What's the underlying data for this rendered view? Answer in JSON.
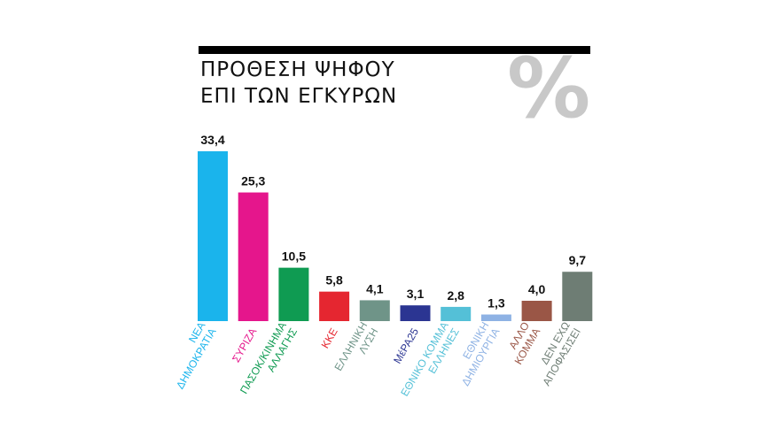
{
  "header": {
    "title_line1": "ΠΡΟΘΕΣΗ ΨΗΦΟΥ",
    "title_line2": "ΕΠΙ ΤΩΝ ΕΓΚΥΡΩΝ",
    "symbol": "%"
  },
  "chart_data": {
    "type": "bar",
    "title": "ΠΡΟΘΕΣΗ ΨΗΦΟΥ ΕΠΙ ΤΩΝ ΕΓΚΥΡΩΝ",
    "unit": "%",
    "ylim": [
      0,
      33.4
    ],
    "grid": false,
    "legend": "none",
    "categories": [
      [
        "ΝΕΑ",
        "ΔΗΜΟΚΡΑΤΙΑ"
      ],
      [
        "ΣΥΡΙΖΑ"
      ],
      [
        "ΠΑΣΟΚ/ΚΙΝΗΜΑ",
        "ΑΛΛΑΓΗΣ"
      ],
      [
        "ΚΚΕ"
      ],
      [
        "ΕΛΛΗΝΙΚΗ",
        "ΛΥΣΗ"
      ],
      [
        "ΜέΡΑ25"
      ],
      [
        "ΕΘΝΙΚΟ ΚΟΜΜΑ",
        "ΕΛΛΗΝΕΣ"
      ],
      [
        "ΕΘΝΙΚΗ",
        "ΔΗΜΙΟΥΡΓΙΑ"
      ],
      [
        "ΑΛΛΟ",
        "ΚΟΜΜΑ"
      ],
      [
        "ΔΕΝ ΕΧΩ",
        "ΑΠΟΦΑΣΙΣΕΙ"
      ]
    ],
    "values": [
      33.4,
      25.3,
      10.5,
      5.8,
      4.1,
      3.1,
      2.8,
      1.3,
      4.0,
      9.7
    ],
    "value_labels": [
      "33,4",
      "25,3",
      "10,5",
      "5,8",
      "4,1",
      "3,1",
      "2,8",
      "1,3",
      "4,0",
      "9,7"
    ],
    "colors": [
      "#1ab4ec",
      "#e5168c",
      "#0f9b52",
      "#e52630",
      "#6f9488",
      "#2b3592",
      "#54c0d7",
      "#8eb2e4",
      "#9a5646",
      "#6e7d74"
    ]
  }
}
